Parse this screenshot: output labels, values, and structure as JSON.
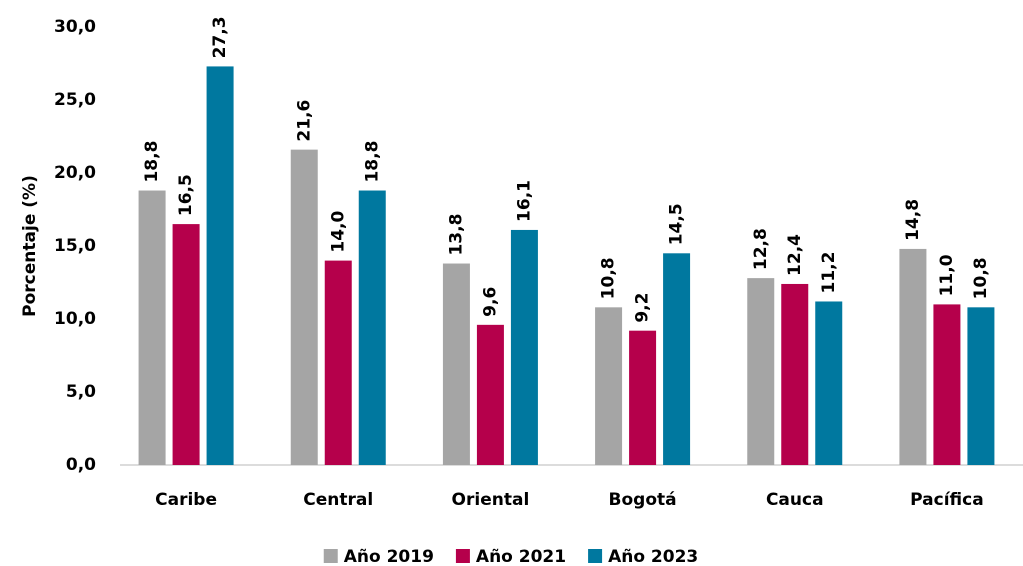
{
  "chart_data": {
    "type": "bar",
    "y_label": "Porcentaje (%)",
    "categories": [
      "Caribe",
      "Central",
      "Oriental",
      "Bogotá",
      "Cauca",
      "Pacífica"
    ],
    "series": [
      {
        "name": "Año 2019",
        "color": "#a5a5a5",
        "values": [
          18.8,
          21.6,
          13.8,
          10.8,
          12.8,
          14.8
        ],
        "value_labels": [
          "18,8",
          "21,6",
          "13,8",
          "10,8",
          "12,8",
          "14,8"
        ]
      },
      {
        "name": "Año 2021",
        "color": "#b5004b",
        "values": [
          16.5,
          14.0,
          9.6,
          9.2,
          12.4,
          11.0
        ],
        "value_labels": [
          "16,5",
          "14,0",
          "9,6",
          "9,2",
          "12,4",
          "11,0"
        ]
      },
      {
        "name": "Año 2023",
        "color": "#00789f",
        "values": [
          27.3,
          18.8,
          16.1,
          14.5,
          11.2,
          10.8
        ],
        "value_labels": [
          "27,3",
          "18,8",
          "16,1",
          "14,5",
          "11,2",
          "10,8"
        ]
      }
    ],
    "ylim": [
      0,
      30
    ],
    "yticks": [
      {
        "value": 0,
        "label": "0,0"
      },
      {
        "value": 5,
        "label": "5,0"
      },
      {
        "value": 10,
        "label": "10,0"
      },
      {
        "value": 15,
        "label": "15,0"
      },
      {
        "value": 20,
        "label": "20,0"
      },
      {
        "value": 25,
        "label": "25,0"
      },
      {
        "value": 30,
        "label": "30,0"
      }
    ],
    "legend": "bottom"
  }
}
